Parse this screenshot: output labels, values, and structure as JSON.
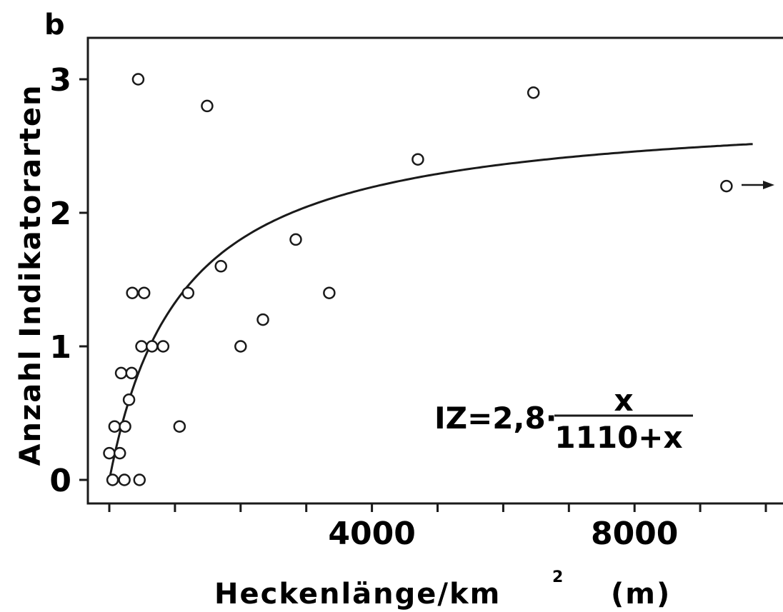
{
  "chart_data": {
    "type": "scatter",
    "panel_label": "b",
    "xlabel": "Heckenlänge/km",
    "xlabel_sup": "2",
    "xlabel_unit": "(m)",
    "ylabel": "Anzahl Indikatorarten",
    "xlim": [
      0,
      10000
    ],
    "ylim": [
      -0.15,
      3.3
    ],
    "xticks": [
      0,
      1000,
      2000,
      3000,
      4000,
      5000,
      6000,
      7000,
      8000,
      9000,
      10000
    ],
    "xtick_labels": [
      {
        "x": 4000,
        "label": "4000"
      },
      {
        "x": 8000,
        "label": "8000"
      }
    ],
    "yticks": [
      0,
      1,
      2,
      3
    ],
    "ytick_labels": [
      "0",
      "1",
      "2",
      "3"
    ],
    "grid": false,
    "points": [
      {
        "x": 0,
        "y": 0.2
      },
      {
        "x": 50,
        "y": 0
      },
      {
        "x": 80,
        "y": 0.4
      },
      {
        "x": 160,
        "y": 0.2
      },
      {
        "x": 180,
        "y": 0.8
      },
      {
        "x": 230,
        "y": 0
      },
      {
        "x": 240,
        "y": 0.4
      },
      {
        "x": 300,
        "y": 0.6
      },
      {
        "x": 340,
        "y": 0.8
      },
      {
        "x": 350,
        "y": 1.4
      },
      {
        "x": 440,
        "y": 3.0
      },
      {
        "x": 460,
        "y": 0
      },
      {
        "x": 490,
        "y": 1.0
      },
      {
        "x": 530,
        "y": 1.4
      },
      {
        "x": 650,
        "y": 1.0
      },
      {
        "x": 820,
        "y": 1.0
      },
      {
        "x": 1070,
        "y": 0.4
      },
      {
        "x": 1200,
        "y": 1.4
      },
      {
        "x": 1490,
        "y": 2.8
      },
      {
        "x": 1700,
        "y": 1.6
      },
      {
        "x": 2000,
        "y": 1.0
      },
      {
        "x": 2340,
        "y": 1.2
      },
      {
        "x": 2840,
        "y": 1.8
      },
      {
        "x": 3350,
        "y": 1.4
      },
      {
        "x": 4700,
        "y": 2.4
      },
      {
        "x": 6460,
        "y": 2.9
      },
      {
        "x": 9400,
        "y": 2.2
      }
    ],
    "offscale_point_note": "point at x≈9400, y=2.2 marked with arrow → (value beyond axis)",
    "fit": {
      "equation_lhs": "IZ=2,8·",
      "equation_numerator": "x",
      "equation_denominator": "1110+x",
      "a": 2.8,
      "k": 1110,
      "x_range": [
        0,
        9800
      ]
    }
  }
}
